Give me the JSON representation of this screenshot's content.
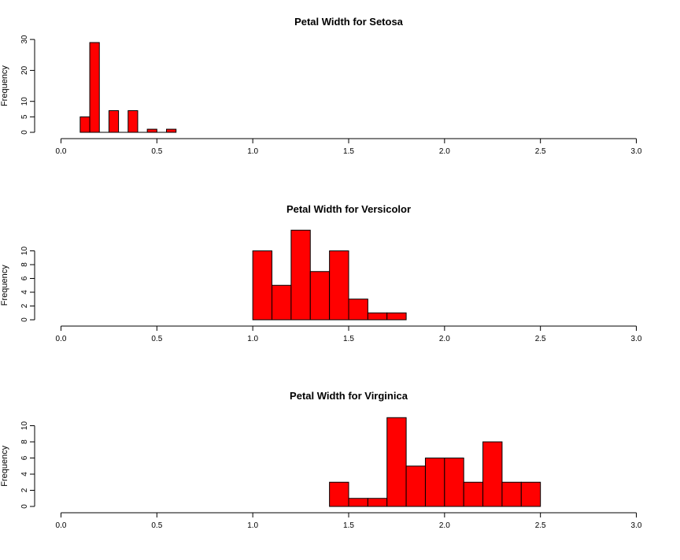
{
  "chart_data": [
    {
      "type": "bar",
      "title": "Petal Width for Setosa",
      "xlabel": "",
      "ylabel": "Frequency",
      "xlim": [
        0,
        3
      ],
      "xticks": [
        "0.0",
        "0.5",
        "1.0",
        "1.5",
        "2.0",
        "2.5",
        "3.0"
      ],
      "yticks": [
        "0",
        "5",
        "10",
        "20",
        "30"
      ],
      "ylim": [
        0,
        30
      ],
      "bar_color": "#ff0000",
      "bins": [
        {
          "x0": 0.1,
          "x1": 0.15,
          "count": 5
        },
        {
          "x0": 0.15,
          "x1": 0.2,
          "count": 29
        },
        {
          "x0": 0.2,
          "x1": 0.25,
          "count": 0
        },
        {
          "x0": 0.25,
          "x1": 0.3,
          "count": 7
        },
        {
          "x0": 0.3,
          "x1": 0.35,
          "count": 0
        },
        {
          "x0": 0.35,
          "x1": 0.4,
          "count": 7
        },
        {
          "x0": 0.4,
          "x1": 0.45,
          "count": 0
        },
        {
          "x0": 0.45,
          "x1": 0.5,
          "count": 1
        },
        {
          "x0": 0.5,
          "x1": 0.55,
          "count": 0
        },
        {
          "x0": 0.55,
          "x1": 0.6,
          "count": 1
        }
      ]
    },
    {
      "type": "bar",
      "title": "Petal Width for Versicolor",
      "xlabel": "",
      "ylabel": "Frequency",
      "xlim": [
        0,
        3
      ],
      "xticks": [
        "0.0",
        "0.5",
        "1.0",
        "1.5",
        "2.0",
        "2.5",
        "3.0"
      ],
      "yticks": [
        "0",
        "2",
        "4",
        "6",
        "8",
        "10"
      ],
      "ylim": [
        0,
        13
      ],
      "bar_color": "#ff0000",
      "bins": [
        {
          "x0": 1.0,
          "x1": 1.1,
          "count": 10
        },
        {
          "x0": 1.1,
          "x1": 1.2,
          "count": 5
        },
        {
          "x0": 1.2,
          "x1": 1.3,
          "count": 13
        },
        {
          "x0": 1.3,
          "x1": 1.4,
          "count": 7
        },
        {
          "x0": 1.4,
          "x1": 1.5,
          "count": 10
        },
        {
          "x0": 1.5,
          "x1": 1.6,
          "count": 3
        },
        {
          "x0": 1.6,
          "x1": 1.7,
          "count": 1
        },
        {
          "x0": 1.7,
          "x1": 1.8,
          "count": 1
        }
      ]
    },
    {
      "type": "bar",
      "title": "Petal Width for Virginica",
      "xlabel": "",
      "ylabel": "Frequency",
      "xlim": [
        0,
        3
      ],
      "xticks": [
        "0.0",
        "0.5",
        "1.0",
        "1.5",
        "2.0",
        "2.5",
        "3.0"
      ],
      "yticks": [
        "0",
        "2",
        "4",
        "6",
        "8",
        "10"
      ],
      "ylim": [
        0,
        11
      ],
      "bar_color": "#ff0000",
      "bins": [
        {
          "x0": 1.4,
          "x1": 1.5,
          "count": 3
        },
        {
          "x0": 1.5,
          "x1": 1.6,
          "count": 1
        },
        {
          "x0": 1.6,
          "x1": 1.7,
          "count": 1
        },
        {
          "x0": 1.7,
          "x1": 1.8,
          "count": 11
        },
        {
          "x0": 1.8,
          "x1": 1.9,
          "count": 5
        },
        {
          "x0": 1.9,
          "x1": 2.0,
          "count": 6
        },
        {
          "x0": 2.0,
          "x1": 2.1,
          "count": 6
        },
        {
          "x0": 2.1,
          "x1": 2.2,
          "count": 3
        },
        {
          "x0": 2.2,
          "x1": 2.3,
          "count": 8
        },
        {
          "x0": 2.3,
          "x1": 2.4,
          "count": 3
        },
        {
          "x0": 2.4,
          "x1": 2.5,
          "count": 3
        }
      ]
    }
  ]
}
